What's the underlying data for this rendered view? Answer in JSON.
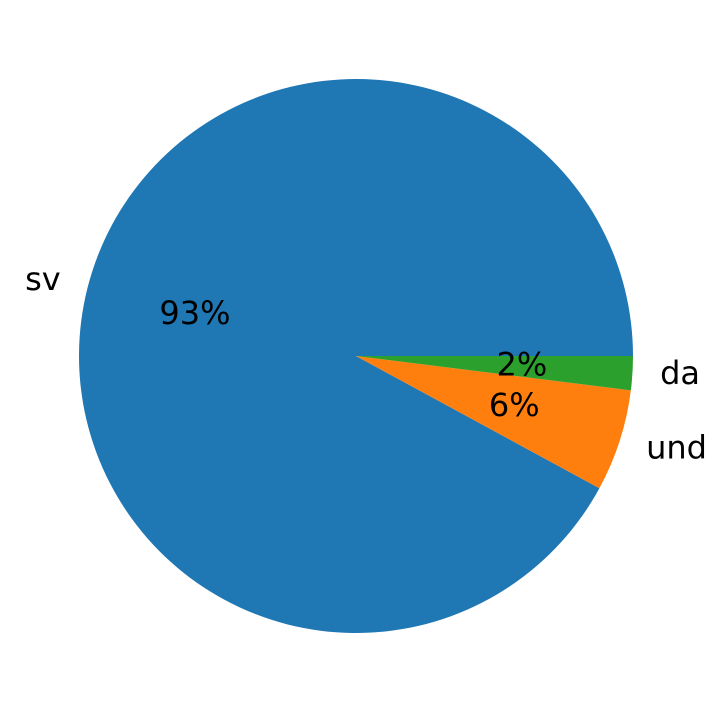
{
  "chart_data": {
    "type": "pie",
    "categories": [
      "sv",
      "und",
      "da"
    ],
    "values": [
      93,
      6,
      2
    ],
    "value_labels": [
      "93%",
      "6%",
      "2%"
    ],
    "colors": [
      "#1f77b4",
      "#ff7f0e",
      "#2ca02c"
    ]
  }
}
